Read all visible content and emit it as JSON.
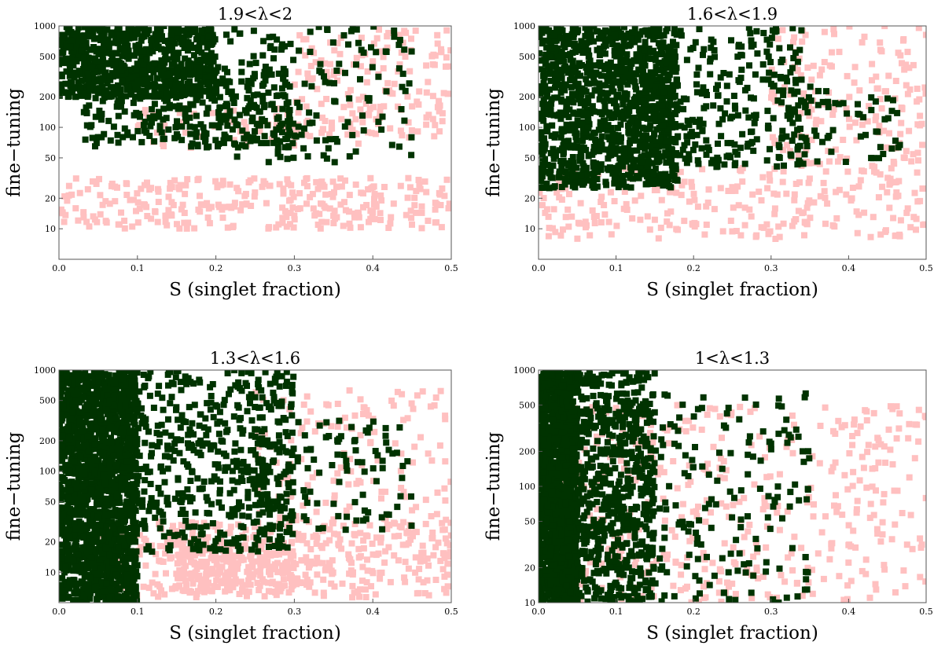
{
  "colors": {
    "points_outer": "#ffc0c0",
    "points_inner": "#003300",
    "frame": "#555555"
  },
  "chart_data": [
    {
      "type": "scatter",
      "title": "1.9<λ<2",
      "xlabel": "S (singlet fraction)",
      "ylabel": "fine−tuning",
      "xlim": [
        0,
        0.5
      ],
      "ylim": [
        5,
        1000
      ],
      "yscale": "log",
      "x_ticks": [
        "0.0",
        "0.1",
        "0.2",
        "0.3",
        "0.4",
        "0.5"
      ],
      "y_ticks": [
        "10",
        "20",
        "50",
        "100",
        "200",
        "500",
        "1000"
      ],
      "grid": false,
      "series": [
        {
          "color": "#ffc0c0",
          "cloud": [
            {
              "x_range": [
                0.0,
                0.5
              ],
              "y_log_range": [
                1.0,
                1.5
              ],
              "n": 300
            },
            {
              "x_range": [
                0.3,
                0.5
              ],
              "y_log_range": [
                1.9,
                3.0
              ],
              "n": 160
            },
            {
              "x_range": [
                0.1,
                0.4
              ],
              "y_log_range": [
                1.8,
                2.2
              ],
              "n": 70
            }
          ]
        },
        {
          "color": "#003300",
          "cloud": [
            {
              "x_range": [
                0.0,
                0.2
              ],
              "y_log_range": [
                2.3,
                3.0
              ],
              "n": 700
            },
            {
              "x_range": [
                0.03,
                0.3
              ],
              "y_log_range": [
                1.8,
                2.6
              ],
              "n": 350
            },
            {
              "x_range": [
                0.2,
                0.45
              ],
              "y_log_range": [
                1.65,
                3.0
              ],
              "n": 160
            }
          ]
        }
      ]
    },
    {
      "type": "scatter",
      "title": "1.6<λ<1.9",
      "xlabel": "S (singlet fraction)",
      "ylabel": "fine−tuning",
      "xlim": [
        0,
        0.5
      ],
      "ylim": [
        5,
        1000
      ],
      "yscale": "log",
      "x_ticks": [
        "0.0",
        "0.1",
        "0.2",
        "0.3",
        "0.4",
        "0.5"
      ],
      "y_ticks": [
        "10",
        "20",
        "50",
        "100",
        "200",
        "500",
        "1000"
      ],
      "grid": false,
      "series": [
        {
          "color": "#ffc0c0",
          "cloud": [
            {
              "x_range": [
                0.0,
                0.5
              ],
              "y_log_range": [
                0.9,
                1.6
              ],
              "n": 260
            },
            {
              "x_range": [
                0.3,
                0.5
              ],
              "y_log_range": [
                1.6,
                3.0
              ],
              "n": 170
            }
          ]
        },
        {
          "color": "#003300",
          "cloud": [
            {
              "x_range": [
                0.0,
                0.18
              ],
              "y_log_range": [
                1.4,
                3.0
              ],
              "n": 1100
            },
            {
              "x_range": [
                0.1,
                0.35
              ],
              "y_log_range": [
                1.6,
                3.0
              ],
              "n": 350
            },
            {
              "x_range": [
                0.3,
                0.47
              ],
              "y_log_range": [
                1.65,
                2.4
              ],
              "n": 60
            }
          ]
        }
      ]
    },
    {
      "type": "scatter",
      "title": "1.3<λ<1.6",
      "xlabel": "S (singlet fraction)",
      "ylabel": "fine−tuning",
      "xlim": [
        0,
        0.5
      ],
      "ylim": [
        5,
        1000
      ],
      "yscale": "log",
      "x_ticks": [
        "0.0",
        "0.1",
        "0.2",
        "0.3",
        "0.4",
        "0.5"
      ],
      "y_ticks": [
        "10",
        "20",
        "50",
        "100",
        "200",
        "500",
        "1000"
      ],
      "grid": false,
      "series": [
        {
          "color": "#ffc0c0",
          "cloud": [
            {
              "x_range": [
                0.05,
                0.5
              ],
              "y_log_range": [
                0.75,
                1.5
              ],
              "n": 450
            },
            {
              "x_range": [
                0.15,
                0.3
              ],
              "y_log_range": [
                0.8,
                1.3
              ],
              "n": 200
            },
            {
              "x_range": [
                0.25,
                0.5
              ],
              "y_log_range": [
                1.5,
                2.8
              ],
              "n": 130
            }
          ]
        },
        {
          "color": "#003300",
          "cloud": [
            {
              "x_range": [
                0.0,
                0.1
              ],
              "y_log_range": [
                0.7,
                3.0
              ],
              "n": 1600
            },
            {
              "x_range": [
                0.06,
                0.3
              ],
              "y_log_range": [
                1.2,
                3.0
              ],
              "n": 600
            },
            {
              "x_range": [
                0.25,
                0.45
              ],
              "y_log_range": [
                1.4,
                2.5
              ],
              "n": 110
            }
          ]
        }
      ]
    },
    {
      "type": "scatter",
      "title": "1<λ<1.3",
      "xlabel": "S (singlet fraction)",
      "ylabel": "fine−tuning",
      "xlim": [
        0,
        0.5
      ],
      "ylim": [
        10,
        1000
      ],
      "yscale": "log",
      "x_ticks": [
        "0.0",
        "0.1",
        "0.2",
        "0.3",
        "0.4",
        "0.5"
      ],
      "y_ticks": [
        "10",
        "20",
        "50",
        "100",
        "200",
        "500",
        "1000"
      ],
      "grid": false,
      "series": [
        {
          "color": "#ffc0c0",
          "cloud": [
            {
              "x_range": [
                0.03,
                0.5
              ],
              "y_log_range": [
                1.0,
                2.7
              ],
              "n": 420
            }
          ]
        },
        {
          "color": "#003300",
          "cloud": [
            {
              "x_range": [
                0.0,
                0.05
              ],
              "y_log_range": [
                1.0,
                3.0
              ],
              "n": 1400
            },
            {
              "x_range": [
                0.03,
                0.15
              ],
              "y_log_range": [
                1.0,
                3.0
              ],
              "n": 700
            },
            {
              "x_range": [
                0.1,
                0.35
              ],
              "y_log_range": [
                1.0,
                2.8
              ],
              "n": 220
            }
          ]
        }
      ]
    }
  ]
}
